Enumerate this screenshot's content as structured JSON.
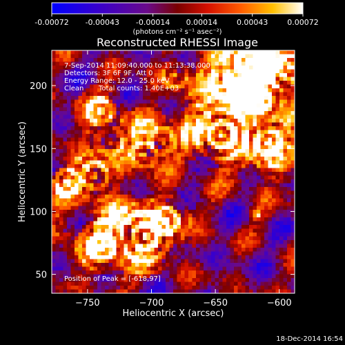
{
  "chart_data": {
    "type": "heatmap",
    "title": "Reconstructed RHESSI Image",
    "xlabel": "Heliocentric X (arcsec)",
    "ylabel": "Heliocentric Y (arcsec)",
    "xlim": [
      -778,
      -588
    ],
    "ylim": [
      35,
      228
    ],
    "x_ticks": [
      -750,
      -700,
      -650,
      -600
    ],
    "x_tick_labels": [
      "−750",
      "−700",
      "−650",
      "−600"
    ],
    "y_ticks": [
      50,
      100,
      150,
      200
    ],
    "y_tick_labels": [
      "50",
      "100",
      "150",
      "200"
    ],
    "grid_cells": [
      64,
      64
    ],
    "colorbar": {
      "colormap": "blue-purple-red-orange-yellow-white",
      "range": [
        -0.00072,
        0.00072
      ],
      "tick_values": [
        -0.00072,
        -0.00043,
        -0.00014,
        0.00014,
        0.00043,
        0.00072
      ],
      "tick_labels": [
        "-0.00072",
        "-0.00043",
        "-0.00014",
        "0.00014",
        "0.00043",
        "0.00072"
      ],
      "unit_label": "(photons cm⁻² s⁻¹ asec⁻²)"
    },
    "annotations": {
      "time_range": "7-Sep-2014 11:09:40.000 to 11:13:38.000",
      "detectors": "Detectors: 3F 6F 9F, Att 0",
      "energy_range": "Energy Range: 12.0 - 25.0 keV",
      "algorithm": "Clean",
      "total_counts": "Total counts: 1.40E+03",
      "peak_position": "Position of Peak = [-618,97]"
    },
    "peak": [
      -618,
      97
    ]
  },
  "footer": {
    "timestamp": "18-Dec-2014 16:54"
  }
}
